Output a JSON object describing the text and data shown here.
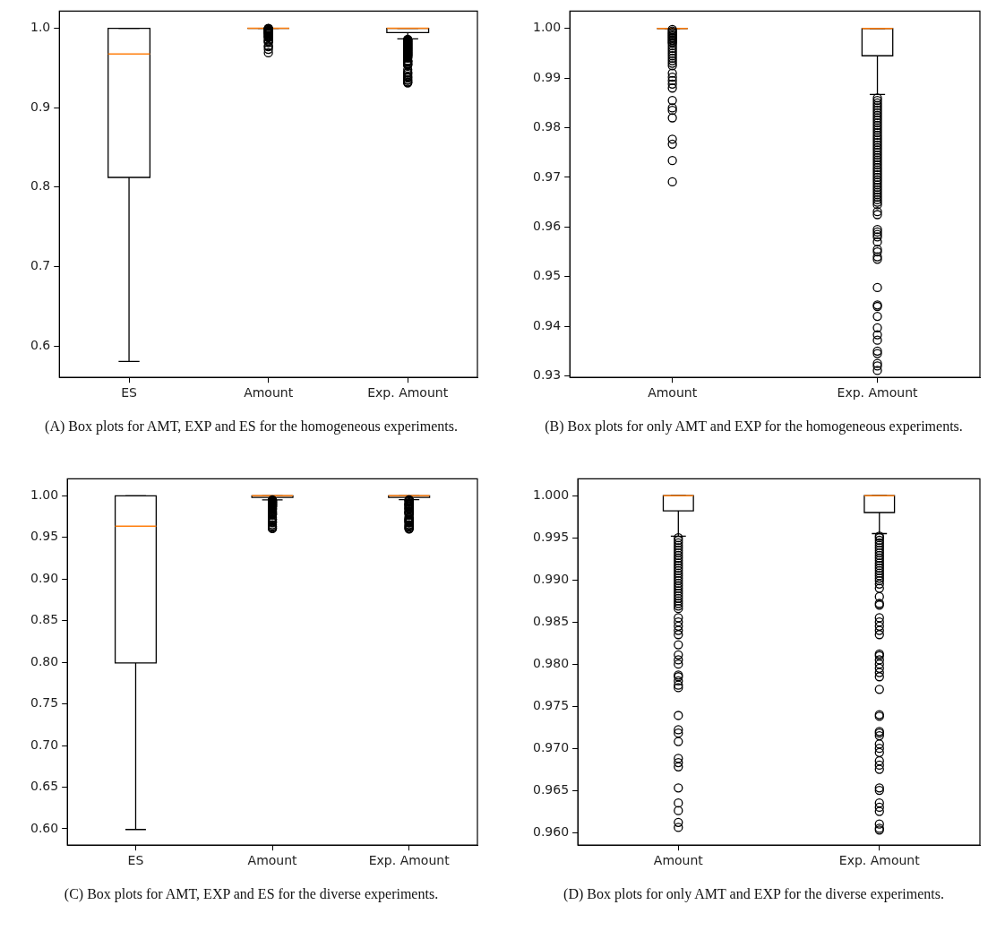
{
  "chart_data": [
    {
      "type": "box",
      "categories": [
        "ES",
        "Amount",
        "Exp. Amount"
      ],
      "ylim": [
        0.5604,
        1.0216
      ],
      "yticks": [
        {
          "value": 0.6,
          "label": "0.6"
        },
        {
          "value": 0.7,
          "label": "0.7"
        },
        {
          "value": 0.8,
          "label": "0.8"
        },
        {
          "value": 0.9,
          "label": "0.9"
        },
        {
          "value": 1,
          "label": "1.0"
        }
      ],
      "annotations": [
        "(A) Box plots for AMT, EXP and ES for the homogeneous experiments."
      ],
      "boxes": [
        {
          "low": 0.5804,
          "q1": 0.8122,
          "median": 0.9676,
          "q3": 1,
          "high": 1
        },
        {
          "low": 1,
          "q1": 1,
          "median": 1,
          "q3": 1,
          "high": 1,
          "outliers": [
            0.9998,
            0.9995,
            0.9992,
            0.999,
            0.9987,
            0.9975,
            0.997,
            0.9965,
            0.996,
            0.9955,
            0.995,
            0.9945,
            0.994,
            0.9935,
            0.993,
            0.9925,
            0.991,
            0.9902,
            0.9895,
            0.9888,
            0.988,
            0.9855,
            0.984,
            0.9835,
            0.982,
            0.9777,
            0.9767,
            0.9734,
            0.9691
          ]
        },
        {
          "low": 0.9867,
          "q1": 0.9945,
          "median": 1,
          "q3": 1,
          "high": 1,
          "outliers": [
            0.986,
            0.9855,
            0.985,
            0.9845,
            0.984,
            0.9835,
            0.983,
            0.9825,
            0.982,
            0.9815,
            0.981,
            0.9805,
            0.98,
            0.9795,
            0.979,
            0.9785,
            0.978,
            0.9775,
            0.977,
            0.9765,
            0.976,
            0.9755,
            0.975,
            0.9745,
            0.974,
            0.9735,
            0.973,
            0.9725,
            0.972,
            0.9715,
            0.971,
            0.9705,
            0.97,
            0.9695,
            0.969,
            0.9685,
            0.968,
            0.9675,
            0.967,
            0.9665,
            0.966,
            0.9655,
            0.965,
            0.9645,
            0.9631,
            0.9625,
            0.9595,
            0.959,
            0.9585,
            0.958,
            0.957,
            0.9555,
            0.955,
            0.954,
            0.9535,
            0.9478,
            0.9443,
            0.944,
            0.942,
            0.9397,
            0.9383,
            0.9372,
            0.935,
            0.9345,
            0.9325,
            0.932,
            0.9311
          ]
        }
      ]
    },
    {
      "type": "box",
      "categories": [
        "Amount",
        "Exp. Amount"
      ],
      "ylim": [
        0.9297,
        1.0035
      ],
      "yticks": [
        {
          "value": 0.93,
          "label": "0.93"
        },
        {
          "value": 0.94,
          "label": "0.94"
        },
        {
          "value": 0.95,
          "label": "0.95"
        },
        {
          "value": 0.96,
          "label": "0.96"
        },
        {
          "value": 0.97,
          "label": "0.97"
        },
        {
          "value": 0.98,
          "label": "0.98"
        },
        {
          "value": 0.99,
          "label": "0.99"
        },
        {
          "value": 1,
          "label": "1.00"
        }
      ],
      "annotations": [
        "(B) Box plots for only AMT and EXP for the homogeneous experiments."
      ],
      "boxes": [
        {
          "low": 1,
          "q1": 1,
          "median": 1,
          "q3": 1,
          "high": 1,
          "outliers": [
            0.9998,
            0.9995,
            0.9992,
            0.999,
            0.9987,
            0.9985,
            0.9982,
            0.998,
            0.9977,
            0.9975,
            0.9972,
            0.997,
            0.9965,
            0.996,
            0.9955,
            0.995,
            0.9945,
            0.994,
            0.9935,
            0.993,
            0.9925,
            0.991,
            0.9902,
            0.9895,
            0.9888,
            0.988,
            0.9855,
            0.984,
            0.9835,
            0.982,
            0.9777,
            0.9767,
            0.9734,
            0.9691
          ]
        },
        {
          "low": 0.9867,
          "q1": 0.9945,
          "median": 1,
          "q3": 1,
          "high": 1,
          "outliers": [
            0.986,
            0.9855,
            0.985,
            0.9845,
            0.984,
            0.9835,
            0.983,
            0.9825,
            0.982,
            0.9815,
            0.981,
            0.9805,
            0.98,
            0.9795,
            0.979,
            0.9785,
            0.978,
            0.9775,
            0.977,
            0.9765,
            0.976,
            0.9755,
            0.975,
            0.9745,
            0.974,
            0.9735,
            0.973,
            0.9725,
            0.972,
            0.9715,
            0.971,
            0.9705,
            0.97,
            0.9695,
            0.969,
            0.9685,
            0.968,
            0.9675,
            0.967,
            0.9665,
            0.966,
            0.9655,
            0.965,
            0.9645,
            0.9631,
            0.9625,
            0.9595,
            0.959,
            0.9585,
            0.958,
            0.957,
            0.9555,
            0.955,
            0.954,
            0.9535,
            0.9478,
            0.9443,
            0.944,
            0.942,
            0.9397,
            0.9383,
            0.9372,
            0.935,
            0.9345,
            0.9325,
            0.932,
            0.9311
          ]
        }
      ]
    },
    {
      "type": "box",
      "categories": [
        "ES",
        "Amount",
        "Exp. Amount"
      ],
      "ylim": [
        0.5804,
        1.0204
      ],
      "yticks": [
        {
          "value": 0.6,
          "label": "0.60"
        },
        {
          "value": 0.65,
          "label": "0.65"
        },
        {
          "value": 0.7,
          "label": "0.70"
        },
        {
          "value": 0.75,
          "label": "0.75"
        },
        {
          "value": 0.8,
          "label": "0.80"
        },
        {
          "value": 0.85,
          "label": "0.85"
        },
        {
          "value": 0.9,
          "label": "0.90"
        },
        {
          "value": 0.95,
          "label": "0.95"
        },
        {
          "value": 1,
          "label": "1.00"
        }
      ],
      "annotations": [
        "(C) Box plots for AMT, EXP and ES for the diverse experiments."
      ],
      "boxes": [
        {
          "low": 0.5992,
          "q1": 0.7992,
          "median": 0.9635,
          "q3": 1,
          "high": 1
        },
        {
          "low": 0.9952,
          "q1": 0.9982,
          "median": 1,
          "q3": 1,
          "high": 1,
          "outliers": [
            0.995,
            0.9947,
            0.9944,
            0.9941,
            0.9938,
            0.9935,
            0.9932,
            0.9929,
            0.9926,
            0.9923,
            0.992,
            0.9917,
            0.9914,
            0.9911,
            0.9908,
            0.9905,
            0.9902,
            0.9899,
            0.9896,
            0.9893,
            0.989,
            0.9887,
            0.9884,
            0.9881,
            0.9878,
            0.9875,
            0.9872,
            0.9869,
            0.9866,
            0.9855,
            0.985,
            0.9845,
            0.984,
            0.9835,
            0.9823,
            0.9811,
            0.9805,
            0.98,
            0.9787,
            0.9785,
            0.978,
            0.9775,
            0.9772,
            0.9739,
            0.9722,
            0.9718,
            0.9708,
            0.9688,
            0.9683,
            0.9678,
            0.9653,
            0.9635,
            0.9626,
            0.9612,
            0.9606
          ]
        },
        {
          "low": 0.9955,
          "q1": 0.998,
          "median": 1,
          "q3": 1,
          "high": 1,
          "outliers": [
            0.9952,
            0.995,
            0.9947,
            0.9944,
            0.9929,
            0.992,
            0.9908,
            0.9902,
            0.9899,
            0.9895,
            0.989,
            0.988,
            0.9872,
            0.987,
            0.9855,
            0.985,
            0.9845,
            0.984,
            0.9835,
            0.9812,
            0.981,
            0.9805,
            0.98,
            0.9795,
            0.979,
            0.9785,
            0.977,
            0.974,
            0.9738,
            0.972,
            0.9718,
            0.9715,
            0.9705,
            0.97,
            0.9695,
            0.9685,
            0.968,
            0.9675,
            0.9653,
            0.965,
            0.9635,
            0.963,
            0.9625,
            0.961,
            0.9605,
            0.9603
          ]
        }
      ]
    },
    {
      "type": "box",
      "categories": [
        "Amount",
        "Exp. Amount"
      ],
      "ylim": [
        0.9585,
        1.002
      ],
      "yticks": [
        {
          "value": 0.96,
          "label": "0.960"
        },
        {
          "value": 0.965,
          "label": "0.965"
        },
        {
          "value": 0.97,
          "label": "0.970"
        },
        {
          "value": 0.975,
          "label": "0.975"
        },
        {
          "value": 0.98,
          "label": "0.980"
        },
        {
          "value": 0.985,
          "label": "0.985"
        },
        {
          "value": 0.99,
          "label": "0.990"
        },
        {
          "value": 0.995,
          "label": "0.995"
        },
        {
          "value": 1,
          "label": "1.000"
        }
      ],
      "annotations": [
        "(D) Box plots for only AMT and EXP for the diverse experiments."
      ],
      "boxes": [
        {
          "low": 0.9952,
          "q1": 0.9982,
          "median": 1,
          "q3": 1,
          "high": 1,
          "outliers": [
            0.995,
            0.9947,
            0.9944,
            0.9941,
            0.9938,
            0.9935,
            0.9932,
            0.9929,
            0.9926,
            0.9923,
            0.992,
            0.9917,
            0.9914,
            0.9911,
            0.9908,
            0.9905,
            0.9902,
            0.9899,
            0.9896,
            0.9893,
            0.989,
            0.9887,
            0.9884,
            0.9881,
            0.9878,
            0.9875,
            0.9872,
            0.9869,
            0.9866,
            0.9855,
            0.985,
            0.9845,
            0.984,
            0.9835,
            0.9823,
            0.9811,
            0.9805,
            0.98,
            0.9787,
            0.9785,
            0.978,
            0.9775,
            0.9772,
            0.9739,
            0.9722,
            0.9718,
            0.9708,
            0.9688,
            0.9683,
            0.9678,
            0.9653,
            0.9635,
            0.9626,
            0.9612,
            0.9606
          ]
        },
        {
          "low": 0.9955,
          "q1": 0.998,
          "median": 1,
          "q3": 1,
          "high": 1,
          "outliers": [
            0.9952,
            0.995,
            0.9947,
            0.9944,
            0.9941,
            0.9938,
            0.9935,
            0.9932,
            0.9929,
            0.9926,
            0.9923,
            0.992,
            0.9917,
            0.9914,
            0.9911,
            0.9908,
            0.9905,
            0.9902,
            0.9899,
            0.9895,
            0.989,
            0.988,
            0.9872,
            0.987,
            0.9855,
            0.985,
            0.9845,
            0.984,
            0.9835,
            0.9812,
            0.981,
            0.9805,
            0.98,
            0.9795,
            0.979,
            0.9785,
            0.977,
            0.974,
            0.9738,
            0.972,
            0.9718,
            0.9715,
            0.9705,
            0.97,
            0.9695,
            0.9685,
            0.968,
            0.9675,
            0.9653,
            0.965,
            0.9635,
            0.963,
            0.9625,
            0.961,
            0.9605,
            0.9603
          ]
        }
      ]
    }
  ]
}
